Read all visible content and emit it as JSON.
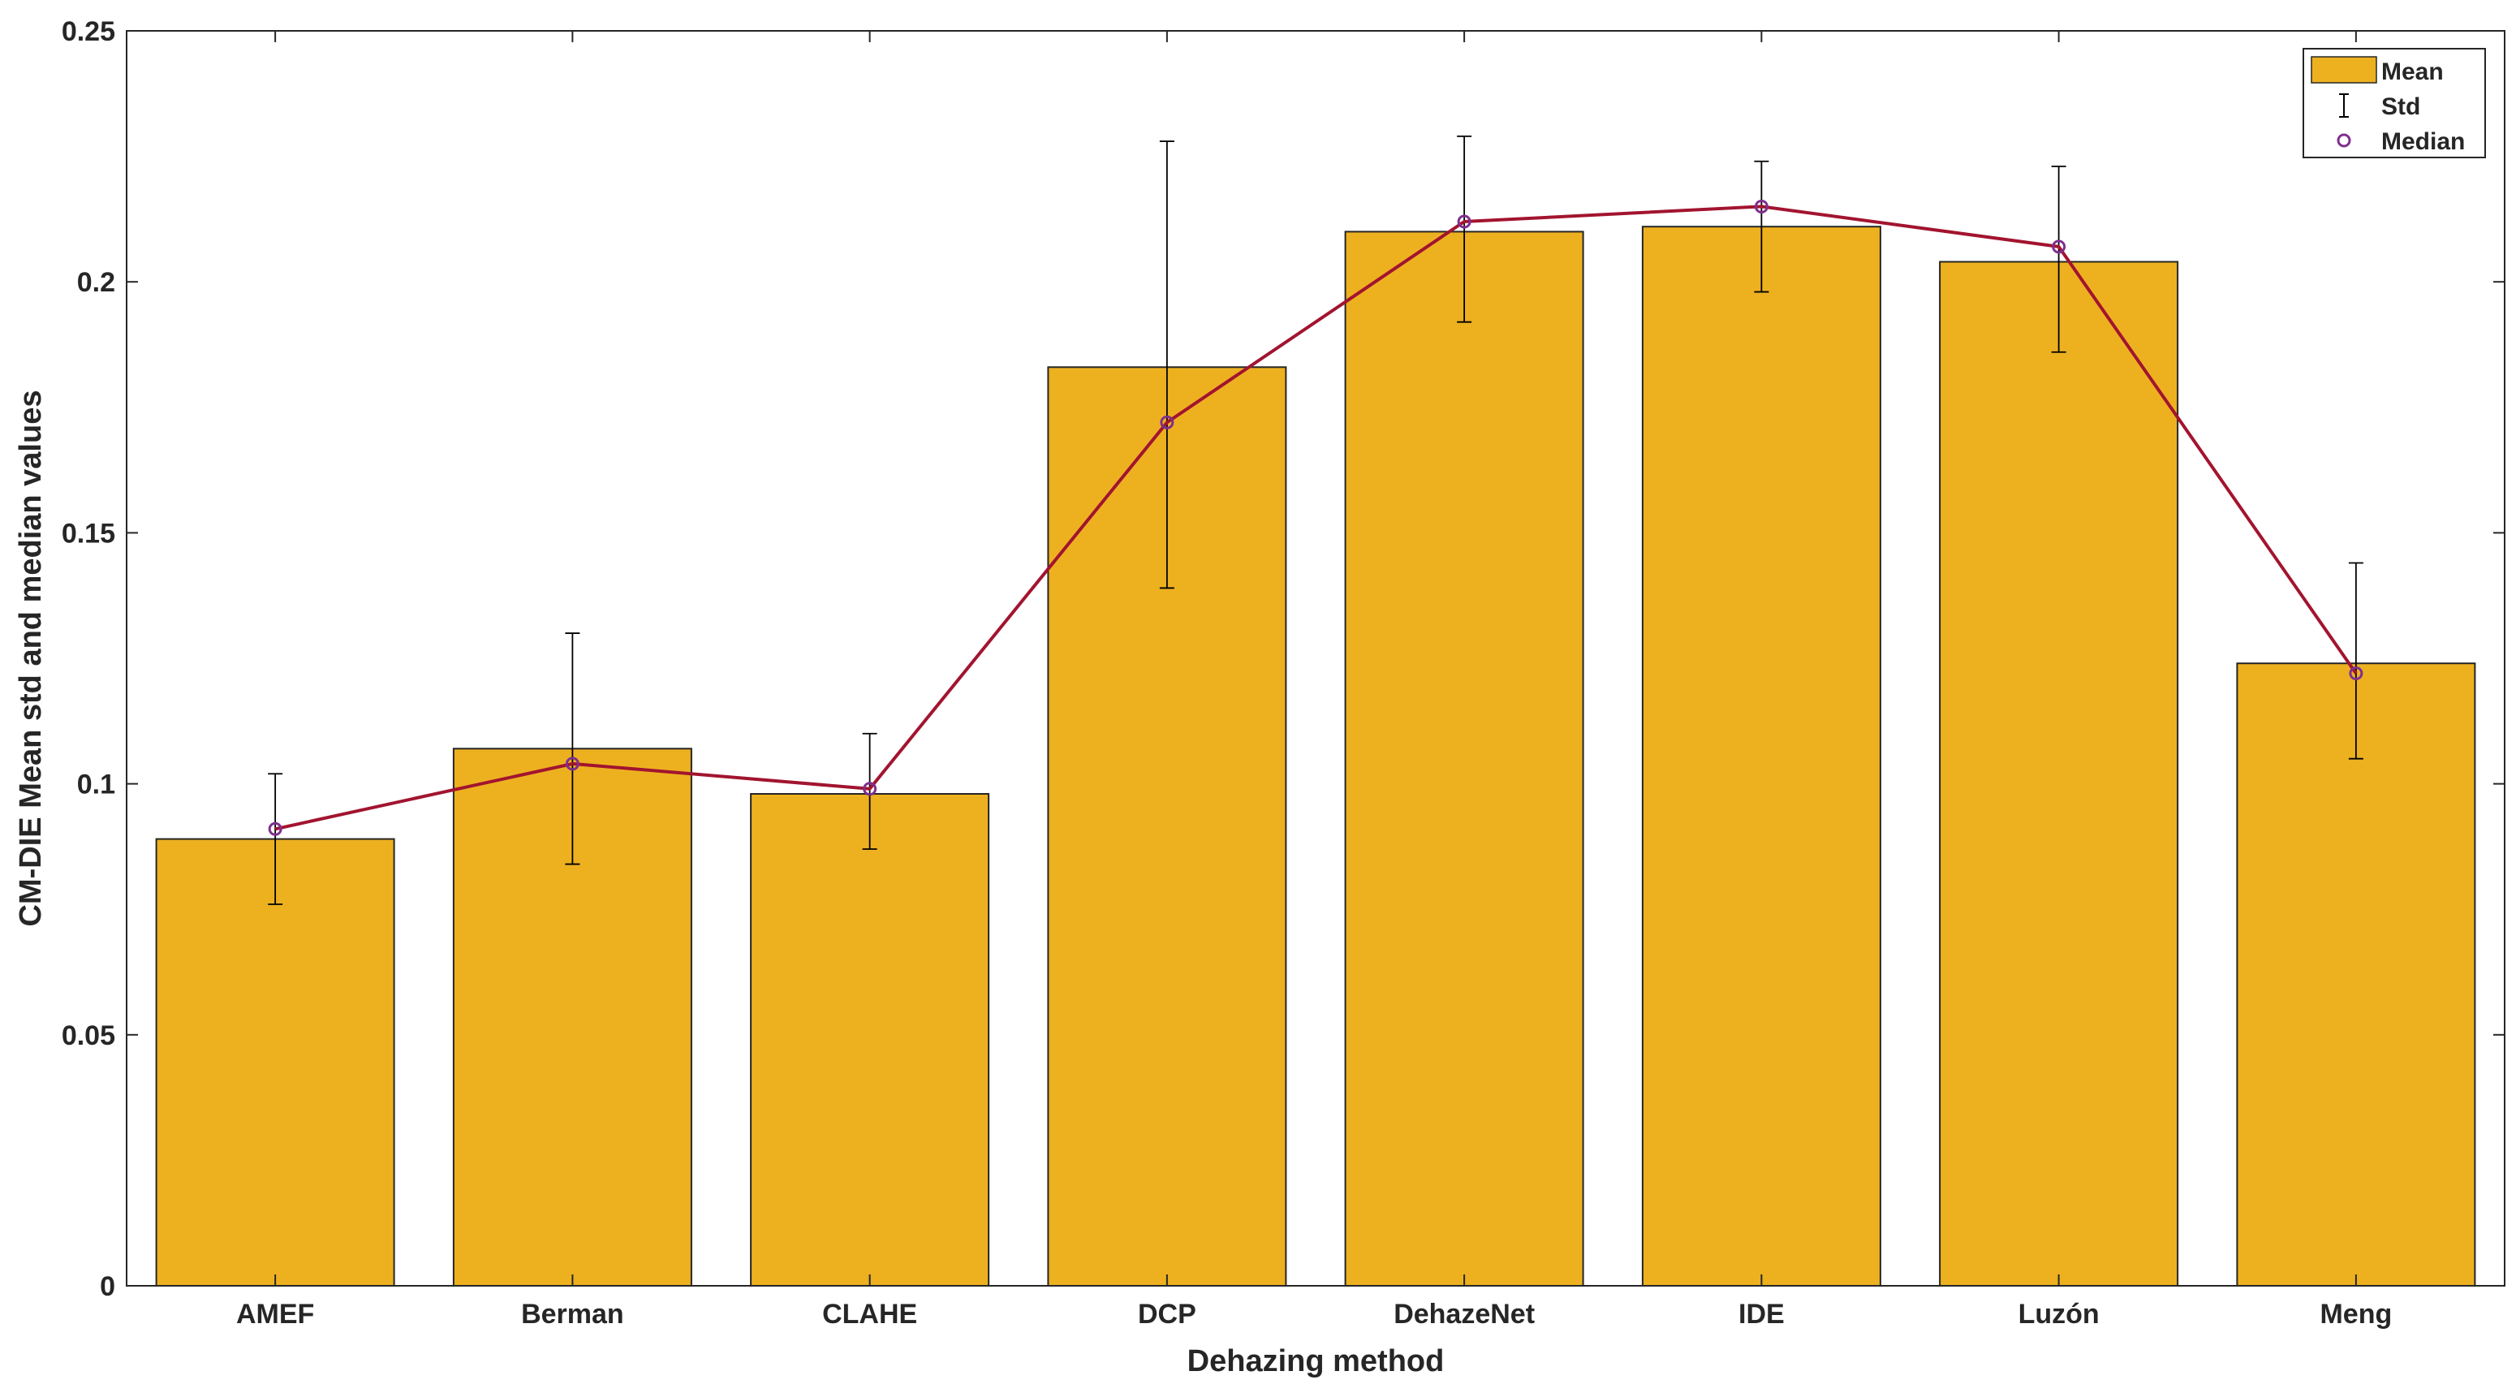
{
  "chart_data": {
    "type": "bar",
    "title": "",
    "xlabel": "Dehazing method",
    "ylabel": "CM-DIE Mean std and median values",
    "categories": [
      "AMEF",
      "Berman",
      "CLAHE",
      "DCP",
      "DehazeNet",
      "IDE",
      "Luzón",
      "Meng"
    ],
    "ylim": [
      0,
      0.25
    ],
    "yticks": [
      0,
      0.05,
      0.1,
      0.15,
      0.2,
      0.25
    ],
    "ytick_labels": [
      "0",
      "0.05",
      "0.1",
      "0.15",
      "0.2",
      "0.25"
    ],
    "grid": false,
    "legend_position": "top-right",
    "series": [
      {
        "name": "Mean",
        "kind": "bar",
        "color": "#EDB120",
        "values": [
          0.089,
          0.107,
          0.098,
          0.183,
          0.21,
          0.211,
          0.204,
          0.124
        ]
      },
      {
        "name": "Std",
        "kind": "errorbar",
        "color": "#000000",
        "lower": [
          0.076,
          0.084,
          0.087,
          0.139,
          0.192,
          0.198,
          0.186,
          0.105
        ],
        "upper": [
          0.102,
          0.13,
          0.11,
          0.228,
          0.229,
          0.224,
          0.223,
          0.144
        ]
      },
      {
        "name": "Median",
        "kind": "line-marker",
        "color": "#A2142F",
        "marker_color": "#7E2F8E",
        "values": [
          0.091,
          0.104,
          0.099,
          0.172,
          0.212,
          0.215,
          0.207,
          0.122
        ]
      }
    ]
  }
}
